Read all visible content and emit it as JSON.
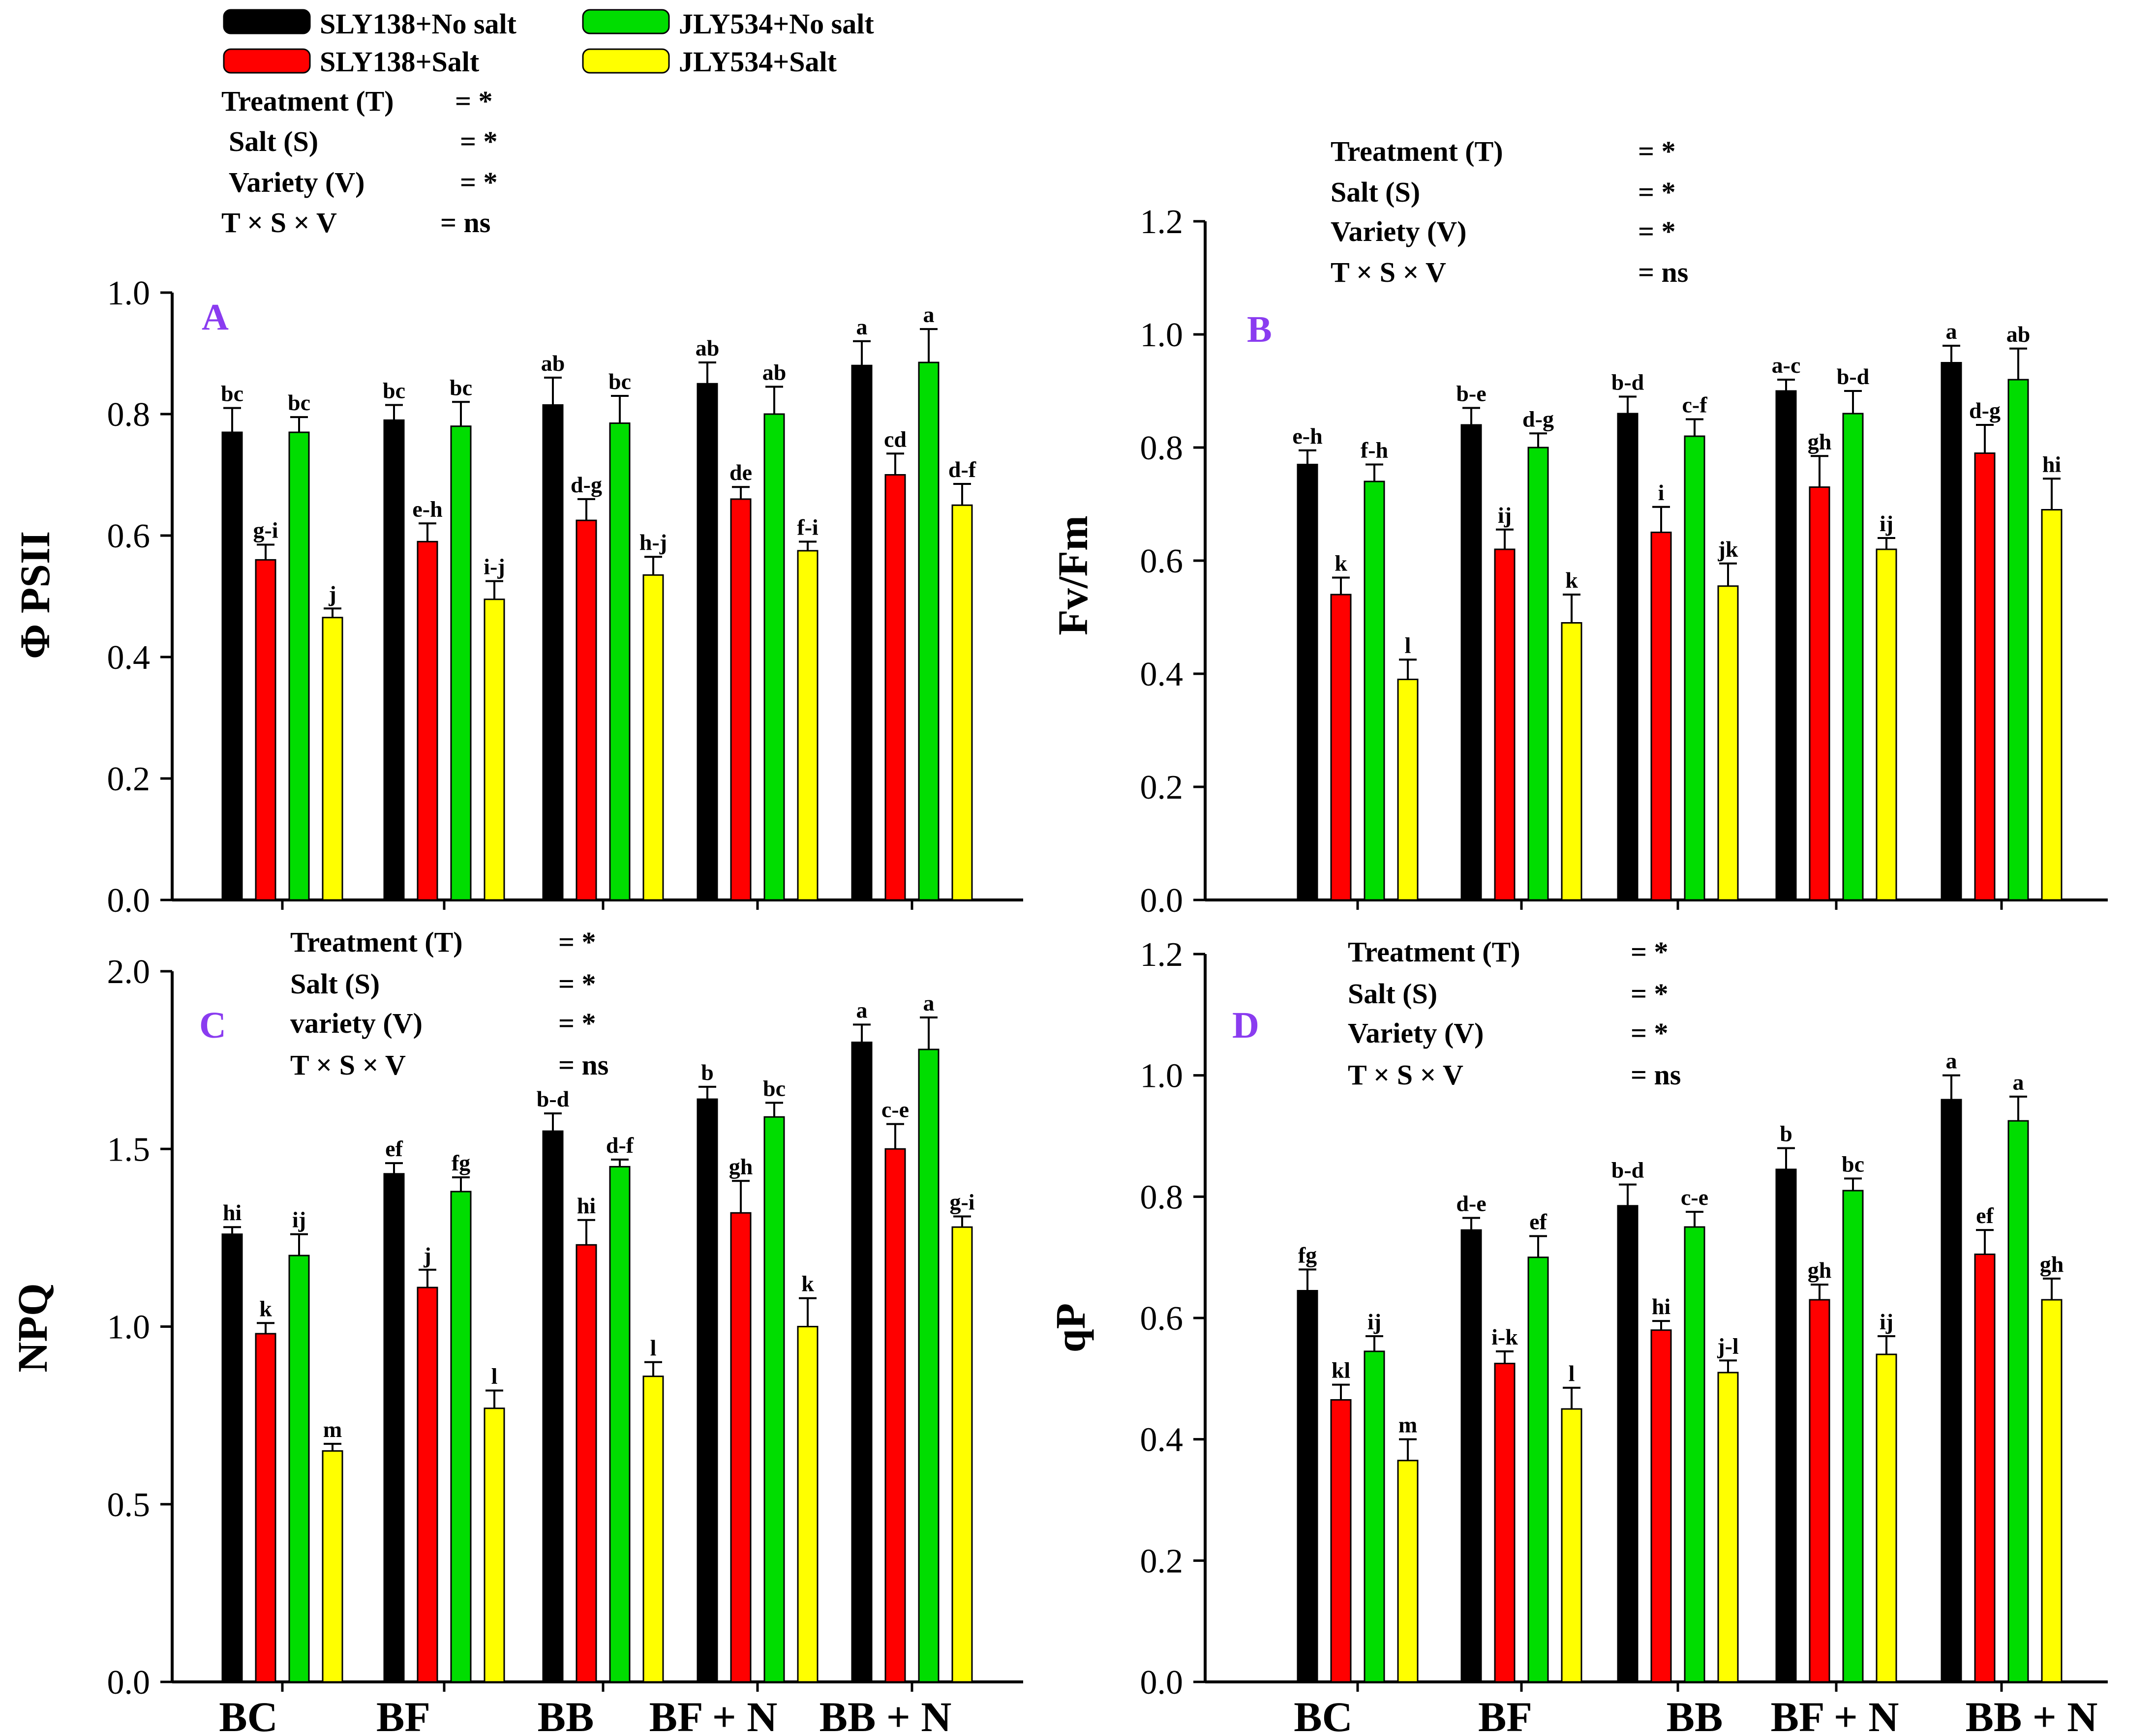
{
  "legend": [
    {
      "label": "SLY138+No salt",
      "color": "#000000"
    },
    {
      "label": "SLY138+Salt",
      "color": "#ff0000"
    },
    {
      "label": "JLY534+No salt",
      "color": "#00dd00"
    },
    {
      "label": "JLY534+Salt",
      "color": "#ffff00"
    }
  ],
  "stats_top": [
    {
      "term": "Treatment  (T)",
      "value": "=  *"
    },
    {
      "term": " Salt (S)",
      "value": "= *"
    },
    {
      "term": " Variety  (V)",
      "value": "= *"
    },
    {
      "term": "T × S × V",
      "value": "=  ns"
    }
  ],
  "chart_data": [
    {
      "type": "bar",
      "panel": "A",
      "ylabel": "Φ PSII",
      "xlabel": "",
      "ylim": [
        0,
        1.0
      ],
      "yticks": [
        "0.0",
        "0.2",
        "0.4",
        "0.6",
        "0.8",
        "1.0"
      ],
      "categories": [
        "BC",
        "BF",
        "BB",
        "BF + N",
        "BB + N"
      ],
      "series": [
        {
          "name": "SLY138+No salt",
          "values": [
            0.77,
            0.79,
            0.815,
            0.85,
            0.88
          ],
          "errors": [
            0.04,
            0.025,
            0.045,
            0.035,
            0.04
          ],
          "letters": [
            "bc",
            "bc",
            "ab",
            "ab",
            "a"
          ]
        },
        {
          "name": "SLY138+Salt",
          "values": [
            0.56,
            0.59,
            0.625,
            0.66,
            0.7
          ],
          "errors": [
            0.025,
            0.03,
            0.035,
            0.02,
            0.035
          ],
          "letters": [
            "g-i",
            "e-h",
            "d-g",
            "de",
            "cd"
          ]
        },
        {
          "name": "JLY534+No salt",
          "values": [
            0.77,
            0.78,
            0.785,
            0.8,
            0.885
          ],
          "errors": [
            0.025,
            0.04,
            0.045,
            0.045,
            0.055
          ],
          "letters": [
            "bc",
            "bc",
            "bc",
            "ab",
            "a"
          ]
        },
        {
          "name": "JLY534+Salt",
          "values": [
            0.465,
            0.495,
            0.535,
            0.575,
            0.65
          ],
          "errors": [
            0.015,
            0.03,
            0.03,
            0.015,
            0.035
          ],
          "letters": [
            "j",
            "i-j",
            "h-j",
            "f-i",
            "d-f"
          ]
        }
      ]
    },
    {
      "type": "bar",
      "panel": "B",
      "ylabel": "Fv/Fm",
      "xlabel": "",
      "ylim": [
        0,
        1.2
      ],
      "yticks": [
        "0.0",
        "0.2",
        "0.4",
        "0.6",
        "0.8",
        "1.0",
        "1.2"
      ],
      "categories": [
        "BC",
        "BF",
        "BB",
        "BF + N",
        "BB + N"
      ],
      "stats": [
        {
          "term": "Treatment  (T)",
          "value": "=  *"
        },
        {
          "term": "Salt  (S)",
          "value": "=  *"
        },
        {
          "term": "Variety   (V)",
          "value": "=  *"
        },
        {
          "term": "T  ×  S  ×  V",
          "value": "= ns"
        }
      ],
      "series": [
        {
          "name": "SLY138+No salt",
          "values": [
            0.77,
            0.84,
            0.86,
            0.9,
            0.95
          ],
          "errors": [
            0.025,
            0.03,
            0.03,
            0.02,
            0.03
          ],
          "letters": [
            "e-h",
            "b-e",
            "b-d",
            "a-c",
            "a"
          ]
        },
        {
          "name": "SLY138+Salt",
          "values": [
            0.54,
            0.62,
            0.65,
            0.73,
            0.79
          ],
          "errors": [
            0.03,
            0.035,
            0.045,
            0.055,
            0.05
          ],
          "letters": [
            "k",
            "ij",
            "i",
            "gh",
            "d-g"
          ]
        },
        {
          "name": "JLY534+No salt",
          "values": [
            0.74,
            0.8,
            0.82,
            0.86,
            0.92
          ],
          "errors": [
            0.03,
            0.025,
            0.03,
            0.04,
            0.055
          ],
          "letters": [
            "f-h",
            "d-g",
            "c-f",
            "b-d",
            "ab"
          ]
        },
        {
          "name": "JLY534+Salt",
          "values": [
            0.39,
            0.49,
            0.555,
            0.62,
            0.69
          ],
          "errors": [
            0.035,
            0.05,
            0.04,
            0.02,
            0.055
          ],
          "letters": [
            "l",
            "k",
            "jk",
            "ij",
            "hi"
          ]
        }
      ]
    },
    {
      "type": "bar",
      "panel": "C",
      "ylabel": "NPQ",
      "xlabel": "",
      "ylim": [
        0,
        2.0
      ],
      "yticks": [
        "0.0",
        "0.5",
        "1.0",
        "1.5",
        "2.0"
      ],
      "categories": [
        "BC",
        "BF",
        "BB",
        "BF + N",
        "BB + N"
      ],
      "stats": [
        {
          "term": "Treatment (T)",
          "value": "= *"
        },
        {
          "term": " Salt (S)",
          "value": "= *"
        },
        {
          "term": "variety  (V)",
          "value": "= *"
        },
        {
          "term": "T  ×  S × V",
          "value": "= ns"
        }
      ],
      "series": [
        {
          "name": "SLY138+No salt",
          "values": [
            1.26,
            1.43,
            1.55,
            1.64,
            1.8
          ],
          "errors": [
            0.02,
            0.03,
            0.05,
            0.035,
            0.05
          ],
          "letters": [
            "hi",
            "ef",
            "b-d",
            "b",
            "a"
          ]
        },
        {
          "name": "SLY138+Salt",
          "values": [
            0.98,
            1.11,
            1.23,
            1.32,
            1.5
          ],
          "errors": [
            0.03,
            0.05,
            0.07,
            0.09,
            0.07
          ],
          "letters": [
            "k",
            "j",
            "hi",
            "gh",
            "c-e"
          ]
        },
        {
          "name": "JLY534+No salt",
          "values": [
            1.2,
            1.38,
            1.45,
            1.59,
            1.78
          ],
          "errors": [
            0.06,
            0.04,
            0.02,
            0.04,
            0.09
          ],
          "letters": [
            "ij",
            "fg",
            "d-f",
            "bc",
            "a"
          ]
        },
        {
          "name": "JLY534+Salt",
          "values": [
            0.65,
            0.77,
            0.86,
            1.0,
            1.28
          ],
          "errors": [
            0.02,
            0.05,
            0.04,
            0.08,
            0.03
          ],
          "letters": [
            "m",
            "l",
            "l",
            "k",
            "g-i"
          ]
        }
      ]
    },
    {
      "type": "bar",
      "panel": "D",
      "ylabel": "qP",
      "xlabel": "",
      "ylim": [
        0,
        1.2
      ],
      "yticks": [
        "0.0",
        "0.2",
        "0.4",
        "0.6",
        "0.8",
        "1.0",
        "1.2"
      ],
      "categories": [
        "BC",
        "BF",
        "BB",
        "BF + N",
        "BB + N"
      ],
      "stats": [
        {
          "term": "Treatment (T)",
          "value": "= *"
        },
        {
          "term": "Salt (S)",
          "value": "= *"
        },
        {
          "term": "Variety  (V)",
          "value": "= *"
        },
        {
          "term": "T  ×  S  ×  V",
          "value": "= ns"
        }
      ],
      "series": [
        {
          "name": "SLY138+No salt",
          "values": [
            0.645,
            0.745,
            0.785,
            0.845,
            0.96
          ],
          "errors": [
            0.035,
            0.02,
            0.035,
            0.035,
            0.04
          ],
          "letters": [
            "fg",
            "d-e",
            "b-d",
            "b",
            "a"
          ]
        },
        {
          "name": "SLY138+Salt",
          "values": [
            0.465,
            0.525,
            0.58,
            0.63,
            0.705
          ],
          "errors": [
            0.025,
            0.02,
            0.015,
            0.025,
            0.04
          ],
          "letters": [
            "kl",
            "i-k",
            "hi",
            "gh",
            "ef"
          ]
        },
        {
          "name": "JLY534+No salt",
          "values": [
            0.545,
            0.7,
            0.75,
            0.81,
            0.925
          ],
          "errors": [
            0.025,
            0.035,
            0.025,
            0.02,
            0.04
          ],
          "letters": [
            "ij",
            "ef",
            "c-e",
            "bc",
            "a"
          ]
        },
        {
          "name": "JLY534+Salt",
          "values": [
            0.365,
            0.45,
            0.51,
            0.54,
            0.63
          ],
          "errors": [
            0.035,
            0.035,
            0.02,
            0.03,
            0.035
          ],
          "letters": [
            "m",
            "l",
            "j-l",
            "ij",
            "gh"
          ]
        }
      ]
    }
  ]
}
